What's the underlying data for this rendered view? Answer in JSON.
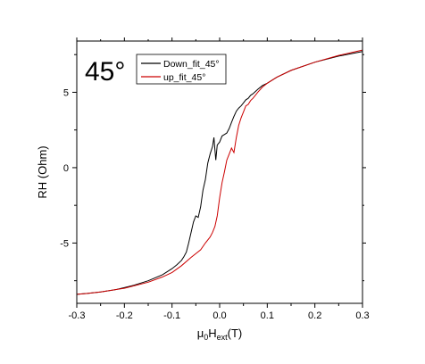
{
  "chart_data": {
    "type": "line",
    "title": "",
    "panel_label": "45°",
    "xlabel": {
      "mu": "μ",
      "sub0": "0",
      "H": "H",
      "sub_ext": "ext",
      "unit": "(T)"
    },
    "ylabel": "RH (Ohm)",
    "xlim": [
      -0.3,
      0.3
    ],
    "ylim": [
      -9,
      8.4
    ],
    "x_ticks": [
      -0.3,
      -0.2,
      -0.1,
      0.0,
      0.1,
      0.2,
      0.3
    ],
    "x_tick_labels": [
      "-0.3",
      "-0.2",
      "-0.1",
      "0.0",
      "0.1",
      "0.2",
      "0.3"
    ],
    "y_ticks": [
      -5,
      0,
      5
    ],
    "y_tick_labels": [
      "-5",
      "0",
      "5"
    ],
    "legend_position": "top-center",
    "series": [
      {
        "name": "Down_fit_45°",
        "color": "#000000",
        "x": [
          -0.3,
          -0.28,
          -0.25,
          -0.22,
          -0.2,
          -0.18,
          -0.15,
          -0.12,
          -0.1,
          -0.09,
          -0.08,
          -0.075,
          -0.07,
          -0.065,
          -0.06,
          -0.055,
          -0.05,
          -0.045,
          -0.04,
          -0.035,
          -0.03,
          -0.025,
          -0.02,
          -0.015,
          -0.012,
          -0.01,
          -0.008,
          -0.005,
          0.0,
          0.005,
          0.01,
          0.015,
          0.02,
          0.025,
          0.03,
          0.035,
          0.04,
          0.045,
          0.05,
          0.055,
          0.06,
          0.065,
          0.07,
          0.08,
          0.09,
          0.1,
          0.12,
          0.15,
          0.2,
          0.25,
          0.3
        ],
        "y": [
          -8.4,
          -8.35,
          -8.25,
          -8.1,
          -7.95,
          -7.8,
          -7.5,
          -7.1,
          -6.7,
          -6.45,
          -6.15,
          -5.9,
          -5.6,
          -5.0,
          -4.3,
          -3.6,
          -3.2,
          -3.3,
          -2.6,
          -1.5,
          -0.8,
          0.3,
          0.9,
          1.4,
          2.0,
          1.2,
          0.5,
          1.5,
          1.7,
          2.1,
          2.2,
          2.3,
          2.6,
          3.0,
          3.4,
          3.75,
          3.95,
          4.1,
          4.3,
          4.5,
          4.6,
          4.8,
          4.9,
          5.2,
          5.45,
          5.6,
          6.0,
          6.45,
          7.0,
          7.4,
          7.7
        ]
      },
      {
        "name": "up_fit_45°",
        "color": "#cc0000",
        "x": [
          -0.3,
          -0.28,
          -0.25,
          -0.2,
          -0.15,
          -0.12,
          -0.1,
          -0.08,
          -0.06,
          -0.04,
          -0.03,
          -0.02,
          -0.015,
          -0.01,
          -0.005,
          0.0,
          0.005,
          0.01,
          0.015,
          0.02,
          0.025,
          0.03,
          0.035,
          0.04,
          0.045,
          0.05,
          0.055,
          0.06,
          0.065,
          0.07,
          0.08,
          0.09,
          0.1,
          0.12,
          0.15,
          0.2,
          0.25,
          0.3
        ],
        "y": [
          -8.4,
          -8.35,
          -8.25,
          -8.0,
          -7.6,
          -7.25,
          -6.95,
          -6.5,
          -5.95,
          -5.45,
          -5.0,
          -4.6,
          -4.3,
          -3.9,
          -3.2,
          -2.0,
          -1.0,
          -0.3,
          0.5,
          0.9,
          1.3,
          1.0,
          2.0,
          2.8,
          3.3,
          3.7,
          4.1,
          4.2,
          4.45,
          4.6,
          5.0,
          5.35,
          5.6,
          6.0,
          6.45,
          7.0,
          7.45,
          7.8
        ]
      }
    ]
  }
}
